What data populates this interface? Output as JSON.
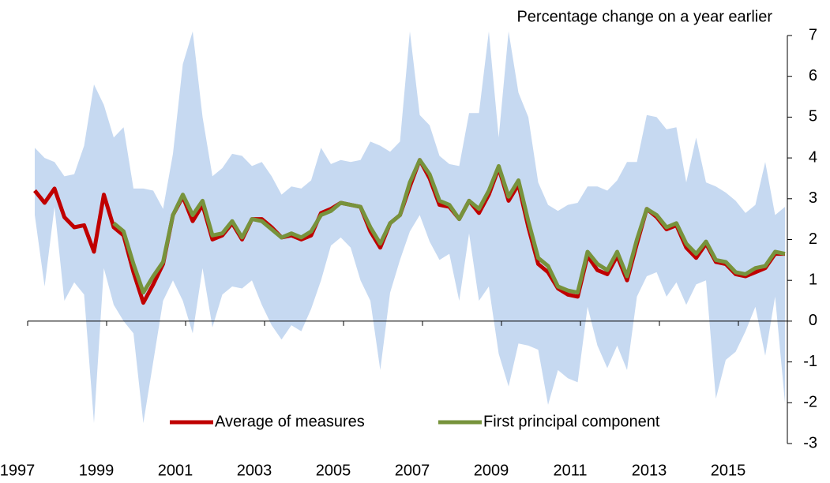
{
  "chart_data": {
    "type": "line",
    "y_axis_label": "Percentage change on a year earlier",
    "categories": [
      "1997",
      null,
      null,
      null,
      null,
      null,
      null,
      null,
      "1999",
      null,
      null,
      null,
      null,
      null,
      null,
      null,
      "2001",
      null,
      null,
      null,
      null,
      null,
      null,
      null,
      "2003",
      null,
      null,
      null,
      null,
      null,
      null,
      null,
      "2005",
      null,
      null,
      null,
      null,
      null,
      null,
      null,
      "2007",
      null,
      null,
      null,
      null,
      null,
      null,
      null,
      "2009",
      null,
      null,
      null,
      null,
      null,
      null,
      null,
      "2011",
      null,
      null,
      null,
      null,
      null,
      null,
      null,
      "2013",
      null,
      null,
      null,
      null,
      null,
      null,
      null,
      "2015",
      null,
      null,
      null,
      null
    ],
    "series": [
      {
        "name": "Average of measures",
        "color": "#c00000",
        "values": [
          3.2,
          2.9,
          3.25,
          2.55,
          2.3,
          2.35,
          1.7,
          3.1,
          2.3,
          2.1,
          1.2,
          0.45,
          0.9,
          1.4,
          2.6,
          3.05,
          2.45,
          2.85,
          2.0,
          2.1,
          2.4,
          2.0,
          2.5,
          2.5,
          2.3,
          2.05,
          2.1,
          2.0,
          2.1,
          2.65,
          2.75,
          2.9,
          2.85,
          2.8,
          2.2,
          1.8,
          2.4,
          2.6,
          3.3,
          3.95,
          3.5,
          2.85,
          2.8,
          2.5,
          2.95,
          2.65,
          3.1,
          3.75,
          2.95,
          3.35,
          2.3,
          1.4,
          1.2,
          0.8,
          0.65,
          0.6,
          1.6,
          1.25,
          1.15,
          1.6,
          1.0,
          1.9,
          2.75,
          2.55,
          2.25,
          2.35,
          1.8,
          1.55,
          1.9,
          1.45,
          1.4,
          1.15,
          1.1,
          1.2,
          1.3,
          1.65,
          1.65
        ]
      },
      {
        "name": "First principal component",
        "color": "#77933c",
        "values": [
          null,
          null,
          null,
          null,
          null,
          null,
          null,
          null,
          2.4,
          2.2,
          1.4,
          0.7,
          1.1,
          1.45,
          2.6,
          3.1,
          2.6,
          2.95,
          2.1,
          2.15,
          2.45,
          2.05,
          2.5,
          2.45,
          2.25,
          2.05,
          2.15,
          2.05,
          2.2,
          2.6,
          2.7,
          2.9,
          2.85,
          2.8,
          2.3,
          1.9,
          2.4,
          2.6,
          3.4,
          3.95,
          3.6,
          2.95,
          2.85,
          2.5,
          2.95,
          2.75,
          3.2,
          3.8,
          3.05,
          3.45,
          2.45,
          1.55,
          1.35,
          0.85,
          0.75,
          0.7,
          1.7,
          1.4,
          1.25,
          1.7,
          1.1,
          2.0,
          2.75,
          2.6,
          2.3,
          2.4,
          1.9,
          1.65,
          1.95,
          1.5,
          1.45,
          1.2,
          1.15,
          1.3,
          1.35,
          1.7,
          1.65
        ]
      }
    ],
    "band": {
      "color": "#c6d9f1",
      "upper": [
        4.25,
        4.0,
        3.9,
        3.55,
        3.6,
        4.3,
        5.8,
        5.3,
        4.5,
        4.75,
        3.25,
        3.25,
        3.2,
        2.75,
        4.1,
        6.3,
        7.1,
        5.0,
        3.55,
        3.75,
        4.1,
        4.05,
        3.8,
        3.9,
        3.55,
        3.1,
        3.3,
        3.25,
        3.45,
        4.25,
        3.85,
        3.95,
        3.9,
        3.95,
        4.4,
        4.3,
        4.15,
        4.4,
        7.1,
        5.05,
        4.8,
        4.05,
        3.85,
        3.8,
        5.1,
        5.1,
        7.1,
        4.5,
        7.1,
        5.6,
        5.0,
        3.4,
        2.85,
        2.7,
        2.85,
        2.9,
        3.3,
        3.3,
        3.2,
        3.45,
        3.9,
        3.9,
        5.05,
        5.0,
        4.7,
        4.75,
        3.4,
        4.5,
        3.4,
        3.3,
        3.15,
        2.95,
        2.65,
        2.85,
        3.9,
        2.6,
        2.8
      ],
      "lower": [
        2.6,
        0.85,
        2.8,
        0.5,
        0.95,
        0.65,
        -2.5,
        1.3,
        0.4,
        0.0,
        -0.3,
        -2.5,
        -1.0,
        0.5,
        1.0,
        0.5,
        -0.3,
        1.3,
        -0.15,
        0.65,
        0.85,
        0.8,
        1.0,
        0.4,
        -0.1,
        -0.45,
        -0.1,
        -0.25,
        0.3,
        1.0,
        1.85,
        2.05,
        1.8,
        1.0,
        0.5,
        -1.2,
        0.7,
        1.5,
        2.2,
        2.6,
        1.95,
        1.5,
        1.65,
        0.5,
        2.15,
        0.5,
        0.85,
        -0.8,
        -1.6,
        -0.55,
        -0.6,
        -0.7,
        -2.05,
        -1.2,
        -1.4,
        -1.5,
        0.35,
        -0.6,
        -1.15,
        -0.6,
        -1.2,
        0.6,
        1.1,
        1.2,
        0.6,
        0.95,
        0.4,
        0.9,
        1.0,
        -1.9,
        -0.95,
        -0.75,
        -0.25,
        0.35,
        -0.85,
        0.6,
        -2.0
      ]
    },
    "ylim": [
      -3,
      7
    ],
    "yticks": [
      -3,
      -2,
      -1,
      0,
      1,
      2,
      3,
      4,
      5,
      6,
      7
    ],
    "y_axis_side": "right",
    "legend": "bottom"
  }
}
